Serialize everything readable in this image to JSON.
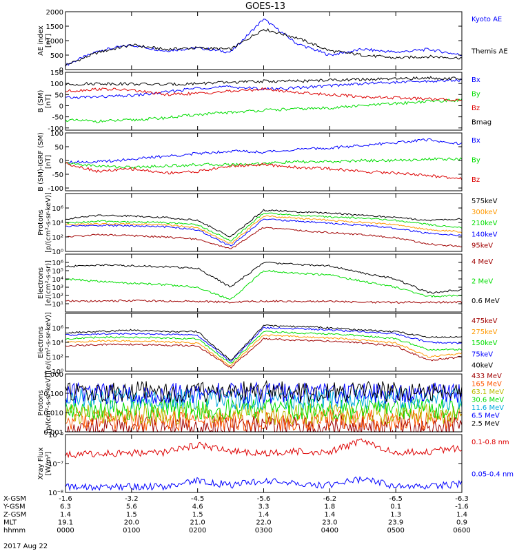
{
  "title": "GOES-13",
  "colors": {
    "black": "#000000",
    "blue": "#0000ff",
    "green": "#00dd00",
    "red": "#dd0000",
    "orange": "#ff9900",
    "darkred": "#a00000",
    "cyan": "#00aadd",
    "orangered": "#ff5500",
    "olive": "#bbbb00"
  },
  "footer": {
    "rows": [
      {
        "label": "X-GSM",
        "values": [
          "-1.6",
          "-3.2",
          "-4.5",
          "-5.6",
          "-6.2",
          "-6.5",
          "-6.3"
        ]
      },
      {
        "label": "Y-GSM",
        "values": [
          "6.3",
          "5.6",
          "4.6",
          "3.3",
          "1.8",
          "0.1",
          "-1.6"
        ]
      },
      {
        "label": "Z-GSM",
        "values": [
          "1.4",
          "1.5",
          "1.5",
          "1.4",
          "1.4",
          "1.3",
          "1.4"
        ]
      },
      {
        "label": "MLT",
        "values": [
          "19.1",
          "20.0",
          "21.0",
          "22.0",
          "23.0",
          "23.9",
          "0.9"
        ]
      },
      {
        "label": "hhmm",
        "values": [
          "0000",
          "0100",
          "0200",
          "0300",
          "0400",
          "0500",
          "0600"
        ]
      }
    ],
    "date": "2017 Aug 22"
  },
  "chart_data": [
    {
      "type": "line",
      "ylabel": "AE index",
      "yunit": "[nT]",
      "yscale": "linear",
      "ylim": [
        0,
        2000
      ],
      "yticks": [
        "0",
        "500",
        "1000",
        "1500",
        "2000"
      ],
      "x": [
        "00:00",
        "00:30",
        "01:00",
        "01:30",
        "02:00",
        "02:30",
        "03:00",
        "03:30",
        "04:00",
        "04:30",
        "05:00",
        "05:30",
        "06:00"
      ],
      "series": [
        {
          "name": "Kyoto AE",
          "color": "blue",
          "values": [
            150,
            650,
            850,
            650,
            750,
            600,
            1750,
            900,
            500,
            700,
            600,
            700,
            500
          ]
        },
        {
          "name": "Themis AE",
          "color": "black",
          "values": [
            150,
            600,
            850,
            700,
            750,
            700,
            1400,
            1100,
            650,
            500,
            400,
            450,
            400
          ]
        }
      ]
    },
    {
      "type": "line",
      "ylabel": "B (SM)",
      "yunit": "[nT]",
      "yscale": "linear",
      "ylim": [
        -110,
        150
      ],
      "yticks": [
        "-100",
        "-50",
        "0",
        "50",
        "100",
        "150"
      ],
      "x": [
        "00:00",
        "00:30",
        "01:00",
        "01:30",
        "02:00",
        "02:30",
        "03:00",
        "03:30",
        "04:00",
        "04:30",
        "05:00",
        "05:30",
        "06:00"
      ],
      "series": [
        {
          "name": "Bx",
          "color": "blue",
          "values": [
            35,
            40,
            45,
            60,
            80,
            85,
            75,
            80,
            90,
            100,
            105,
            110,
            115
          ]
        },
        {
          "name": "By",
          "color": "green",
          "values": [
            -65,
            -70,
            -65,
            -55,
            -40,
            -30,
            -20,
            -15,
            -10,
            0,
            10,
            20,
            25
          ]
        },
        {
          "name": "Bz",
          "color": "red",
          "values": [
            65,
            75,
            70,
            50,
            55,
            65,
            75,
            60,
            50,
            40,
            35,
            30,
            25
          ]
        },
        {
          "name": "Bmag",
          "color": "black",
          "values": [
            95,
            100,
            98,
            95,
            100,
            105,
            110,
            110,
            115,
            118,
            120,
            125,
            122
          ]
        }
      ]
    },
    {
      "type": "line",
      "ylabel": "B (SM)-IGRF (SM)",
      "yunit": "[nT]",
      "yscale": "linear",
      "ylim": [
        -110,
        100
      ],
      "yticks": [
        "-100",
        "-50",
        "0",
        "50",
        "100"
      ],
      "x": [
        "00:00",
        "00:30",
        "01:00",
        "01:30",
        "02:00",
        "02:30",
        "03:00",
        "03:30",
        "04:00",
        "04:30",
        "05:00",
        "05:30",
        "06:00"
      ],
      "series": [
        {
          "name": "Bx",
          "color": "blue",
          "values": [
            -5,
            -5,
            5,
            15,
            25,
            35,
            30,
            40,
            45,
            55,
            65,
            75,
            60
          ]
        },
        {
          "name": "By",
          "color": "green",
          "values": [
            -10,
            -20,
            -25,
            -20,
            -15,
            -15,
            -10,
            -5,
            -5,
            0,
            0,
            5,
            5
          ]
        },
        {
          "name": "Bz",
          "color": "red",
          "values": [
            -10,
            -40,
            -30,
            -45,
            -40,
            -20,
            -15,
            -25,
            -30,
            -40,
            -45,
            -55,
            -65
          ]
        }
      ]
    },
    {
      "type": "line",
      "ylabel": "Protons",
      "yunit": "[p/(cm²-s-sr-keV)]",
      "yscale": "log",
      "ylim": [
        1,
        100000000
      ],
      "yticks": [
        "10⁰",
        "10²",
        "10⁴",
        "10⁶"
      ],
      "x": [
        "00:00",
        "00:30",
        "01:00",
        "01:30",
        "02:00",
        "02:30",
        "03:00",
        "03:30",
        "04:00",
        "04:30",
        "05:00",
        "05:30",
        "06:00"
      ],
      "series": [
        {
          "name": "575keV",
          "color": "black",
          "values": [
            30000,
            100000,
            80000,
            50000,
            20000,
            100,
            500000,
            300000,
            200000,
            100000,
            50000,
            20000,
            30000
          ]
        },
        {
          "name": "300keV",
          "color": "orange",
          "values": [
            5000,
            6000,
            6000,
            5000,
            2000,
            10,
            80000,
            40000,
            20000,
            10000,
            5000,
            1000,
            500
          ]
        },
        {
          "name": "210keV",
          "color": "green",
          "values": [
            8000,
            15000,
            12000,
            10000,
            5000,
            30,
            200000,
            100000,
            60000,
            40000,
            20000,
            5000,
            2000
          ]
        },
        {
          "name": "140keV",
          "color": "blue",
          "values": [
            3000,
            4000,
            3500,
            2500,
            1000,
            5,
            30000,
            15000,
            8000,
            4000,
            1500,
            300,
            150
          ]
        },
        {
          "name": "95keV",
          "color": "darkred",
          "values": [
            100,
            200,
            150,
            100,
            50,
            2,
            2000,
            800,
            400,
            200,
            80,
            10,
            5
          ]
        }
      ]
    },
    {
      "type": "line",
      "ylabel": "Electrons",
      "yunit": "[e/(cm²-s-sr)]",
      "yscale": "log",
      "ylim": [
        1,
        10000000
      ],
      "yticks": [
        "10¹",
        "10²",
        "10³",
        "10⁴",
        "10⁵",
        "10⁶"
      ],
      "x": [
        "00:00",
        "00:30",
        "01:00",
        "01:30",
        "02:00",
        "02:30",
        "03:00",
        "03:30",
        "04:00",
        "04:30",
        "05:00",
        "05:30",
        "06:00"
      ],
      "series": [
        {
          "name": "4 MeV",
          "color": "darkred",
          "values": [
            20,
            20,
            25,
            20,
            20,
            15,
            20,
            20,
            20,
            15,
            15,
            15,
            15
          ]
        },
        {
          "name": "2 MeV",
          "color": "green",
          "values": [
            10000,
            5000,
            3000,
            2000,
            1000,
            30,
            100000,
            50000,
            30000,
            5000,
            1000,
            80,
            100
          ]
        },
        {
          "name": "0.6 MeV",
          "color": "black",
          "values": [
            300000,
            500000,
            400000,
            300000,
            200000,
            1000,
            1000000,
            600000,
            400000,
            50000,
            10000,
            200,
            500
          ]
        }
      ]
    },
    {
      "type": "line",
      "ylabel": "Electrons",
      "yunit": "[e/(cm²-s-sr-keV)]",
      "yscale": "log",
      "ylim": [
        1,
        100000000
      ],
      "yticks": [
        "10⁰",
        "10²",
        "10⁴",
        "10⁶"
      ],
      "x": [
        "00:00",
        "00:30",
        "01:00",
        "01:30",
        "02:00",
        "02:30",
        "03:00",
        "03:30",
        "04:00",
        "04:30",
        "05:00",
        "05:30",
        "06:00"
      ],
      "series": [
        {
          "name": "475keV",
          "color": "darkred",
          "values": [
            3000,
            5000,
            5000,
            4000,
            3000,
            3,
            30000,
            20000,
            15000,
            8000,
            3000,
            30,
            100
          ]
        },
        {
          "name": "275keV",
          "color": "orange",
          "values": [
            10000,
            15000,
            15000,
            12000,
            8000,
            5,
            100000,
            60000,
            40000,
            20000,
            8000,
            100,
            300
          ]
        },
        {
          "name": "150keV",
          "color": "green",
          "values": [
            30000,
            50000,
            50000,
            40000,
            30000,
            10,
            300000,
            200000,
            150000,
            80000,
            30000,
            1000,
            1000
          ]
        },
        {
          "name": "75keV",
          "color": "blue",
          "values": [
            100000,
            150000,
            150000,
            120000,
            100000,
            20,
            1000000,
            800000,
            500000,
            300000,
            150000,
            10000,
            8000
          ]
        },
        {
          "name": "40keV",
          "color": "black",
          "values": [
            200000,
            300000,
            500000,
            300000,
            300000,
            30,
            2000000,
            1500000,
            1000000,
            500000,
            300000,
            50000,
            50000
          ]
        }
      ]
    },
    {
      "type": "line",
      "ylabel": "Protons",
      "yunit": "[p/(cm²-s-sr-keV)]",
      "yscale": "log",
      "ylim": [
        0.001,
        1.0
      ],
      "yticks": [
        "0.001",
        "0.010",
        "0.100",
        "1.000"
      ],
      "x": [
        "00:00",
        "01:00",
        "02:00",
        "03:00",
        "04:00",
        "05:00",
        "06:00"
      ],
      "series": [
        {
          "name": "433 MeV",
          "color": "darkred",
          "values": [
            0.002,
            0.002,
            0.002,
            0.002,
            0.002,
            0.002,
            0.002
          ]
        },
        {
          "name": "165 MeV",
          "color": "orangered",
          "values": [
            0.004,
            0.004,
            0.004,
            0.004,
            0.004,
            0.004,
            0.004
          ]
        },
        {
          "name": "63.1 MeV",
          "color": "olive",
          "values": [
            0.008,
            0.008,
            0.008,
            0.008,
            0.008,
            0.008,
            0.008
          ]
        },
        {
          "name": "30.6 MeV",
          "color": "green",
          "values": [
            0.015,
            0.015,
            0.015,
            0.015,
            0.015,
            0.015,
            0.015
          ]
        },
        {
          "name": "11.6 MeV",
          "color": "cyan",
          "values": [
            0.05,
            0.05,
            0.05,
            0.05,
            0.05,
            0.05,
            0.05
          ]
        },
        {
          "name": "6.5 MeV",
          "color": "blue",
          "values": [
            0.1,
            0.1,
            0.1,
            0.1,
            0.1,
            0.1,
            0.1
          ]
        },
        {
          "name": "2.5 MeV",
          "color": "black",
          "values": [
            0.12,
            0.12,
            0.12,
            0.12,
            0.12,
            0.12,
            0.12
          ]
        }
      ]
    },
    {
      "type": "line",
      "ylabel": "Xray Flux",
      "yunit": "[W/m²]",
      "yscale": "log",
      "ylim": [
        1e-08,
        1e-06
      ],
      "yticks": [
        "10⁻⁸",
        "10⁻⁷",
        "10⁻⁶"
      ],
      "x": [
        "00:00",
        "00:30",
        "01:00",
        "01:30",
        "02:00",
        "02:30",
        "03:00",
        "03:30",
        "04:00",
        "04:30",
        "05:00",
        "05:30",
        "06:00"
      ],
      "series": [
        {
          "name": "0.1-0.8 nm",
          "color": "red",
          "values": [
            2e-07,
            2.2e-07,
            2.3e-07,
            2.4e-07,
            4.5e-07,
            2.6e-07,
            2.2e-07,
            2.6e-07,
            2.5e-07,
            6e-07,
            2.3e-07,
            2.6e-07,
            3.5e-07
          ]
        },
        {
          "name": "0.05-0.4 nm",
          "color": "blue",
          "values": [
            1.5e-08,
            1.5e-08,
            1.6e-08,
            1.6e-08,
            2.5e-08,
            1.8e-08,
            2.5e-08,
            2e-08,
            1.8e-08,
            3e-08,
            1.6e-08,
            1.6e-08,
            2e-08
          ]
        }
      ]
    }
  ]
}
